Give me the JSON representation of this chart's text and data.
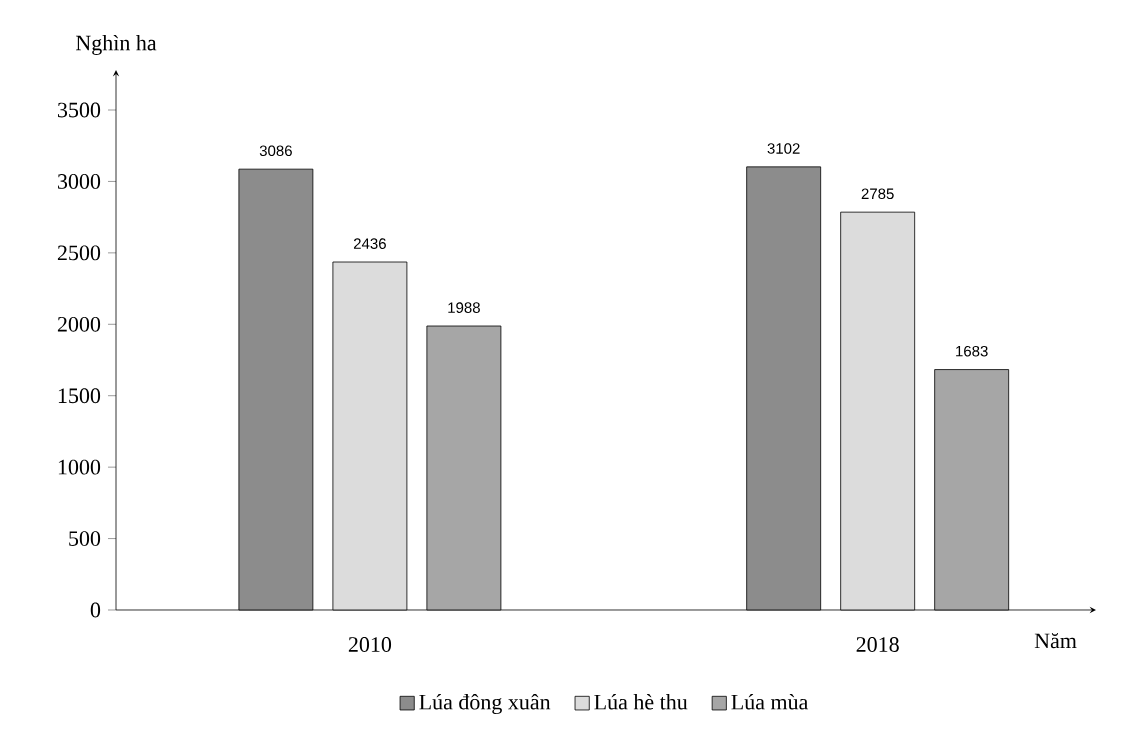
{
  "chart_data": {
    "type": "bar",
    "xlabel": "Năm",
    "ylabel": "Nghìn ha",
    "categories": [
      "2010",
      "2018"
    ],
    "series": [
      {
        "name": "Lúa đông xuân",
        "color": "#8c8c8c",
        "values": [
          3086,
          3102
        ]
      },
      {
        "name": "Lúa hè thu",
        "color": "#dcdcdc",
        "values": [
          2436,
          2785
        ]
      },
      {
        "name": "Lúa mùa",
        "color": "#a6a6a6",
        "values": [
          1988,
          1683
        ]
      }
    ],
    "ylim": [
      0,
      3780
    ],
    "yticks": [
      0,
      500,
      1000,
      1500,
      2000,
      2500,
      3000,
      3500
    ],
    "data_labels": true,
    "legend": "bottom",
    "grid": false
  }
}
